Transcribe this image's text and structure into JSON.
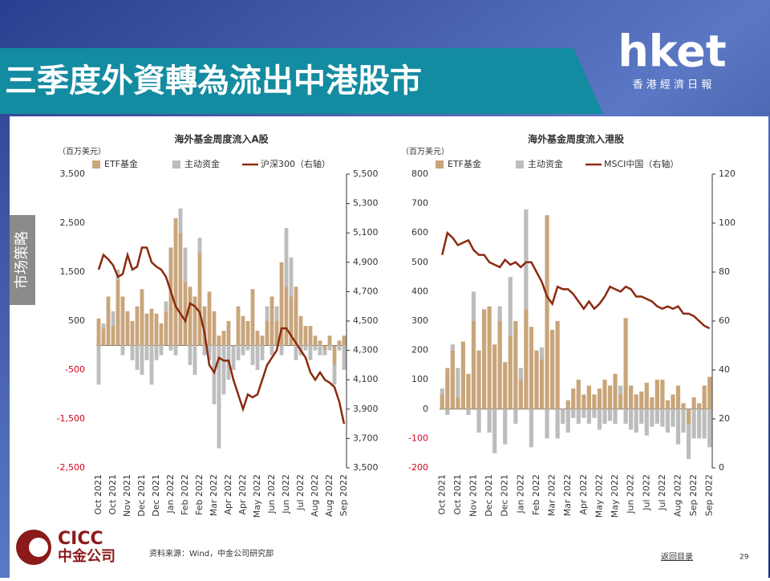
{
  "header": {
    "title": "三季度外資轉為流出中港股市",
    "logo": "hket",
    "logo_sub": "香 港 經 濟 日 報"
  },
  "sidebar": "市场策略",
  "footer": {
    "brand": "CICC",
    "brand_sub": "中金公司",
    "source": "资料来源：Wind，中金公司研究部",
    "link": "返回目录",
    "page": "29"
  },
  "chart_data": [
    {
      "type": "bar",
      "title": "海外基金周度流入A股",
      "unit": "（百万美元）",
      "categories": [
        "Oct 2021",
        null,
        null,
        "Oct 2021",
        null,
        null,
        "Nov 2021",
        null,
        null,
        "Dec 2021",
        null,
        null,
        "Dec 2021",
        null,
        null,
        "Jan 2022",
        null,
        null,
        "Feb 2022",
        null,
        null,
        "Feb 2022",
        null,
        null,
        "Mar 2022",
        null,
        null,
        "Apr 2022",
        null,
        null,
        "Apr 2022",
        null,
        null,
        "May 2022",
        null,
        null,
        "Jun 2022",
        null,
        null,
        "Jun 2022",
        null,
        null,
        "Jul 2022",
        null,
        null,
        "Aug 2022",
        null,
        null,
        "Aug 2022",
        null,
        null,
        "Sep 2022"
      ],
      "series": [
        {
          "name": "ETF基金",
          "type": "bar",
          "color": "#c9a57a",
          "values": [
            550,
            350,
            1000,
            400,
            1350,
            1000,
            700,
            500,
            800,
            1150,
            650,
            750,
            650,
            450,
            700,
            2000,
            2600,
            2300,
            1300,
            1200,
            1000,
            1900,
            800,
            1100,
            700,
            200,
            300,
            500,
            0,
            800,
            600,
            500,
            1150,
            300,
            200,
            500,
            1000,
            500,
            1700,
            1200,
            1000,
            1200,
            600,
            400,
            400,
            200,
            100,
            -100,
            200,
            -400,
            100,
            200
          ]
        },
        {
          "name": "主动资金",
          "type": "bar",
          "color": "#bdbdbd",
          "values": [
            -800,
            100,
            0,
            300,
            200,
            -200,
            0,
            -300,
            -500,
            -600,
            -300,
            -800,
            -300,
            -200,
            200,
            -100,
            -200,
            500,
            700,
            -400,
            -600,
            300,
            -200,
            -300,
            -1200,
            -2100,
            -1000,
            -700,
            -500,
            -300,
            -200,
            -100,
            -400,
            -500,
            -300,
            300,
            -200,
            300,
            -200,
            1200,
            800,
            -300,
            -200,
            -100,
            -300,
            -100,
            -200,
            -100,
            -100,
            -400,
            -100,
            -500
          ]
        },
        {
          "name": "沪深300（右轴）",
          "type": "line",
          "axis": "y2",
          "color": "#8b2a0f",
          "values": [
            4850,
            4950,
            4920,
            4880,
            4800,
            4820,
            4950,
            4850,
            4870,
            5000,
            5000,
            4900,
            4870,
            4850,
            4800,
            4700,
            4600,
            4550,
            4500,
            4620,
            4600,
            4560,
            4420,
            4200,
            4150,
            4250,
            4230,
            4230,
            4100,
            4000,
            3900,
            4000,
            3980,
            4000,
            4100,
            4200,
            4250,
            4300,
            4450,
            4450,
            4400,
            4350,
            4300,
            4250,
            4150,
            4100,
            4150,
            4100,
            4080,
            4050,
            3950,
            3800
          ]
        }
      ],
      "ylim": [
        -2500,
        3500
      ],
      "yticks": [
        {
          "value": -2500,
          "label": "-2,500"
        },
        {
          "value": -1500,
          "label": "-1,500"
        },
        -500,
        500,
        {
          "value": 1500,
          "label": "1,500"
        },
        {
          "value": 2500,
          "label": "2,500"
        },
        {
          "value": 3500,
          "label": "3,500"
        }
      ],
      "y2lim": [
        3500,
        5500
      ],
      "y2ticks": [
        {
          "value": 3500,
          "label": "3,500"
        },
        {
          "value": 3700,
          "label": "3,700"
        },
        {
          "value": 3900,
          "label": "3,900"
        },
        {
          "value": 4100,
          "label": "4,100"
        },
        {
          "value": 4300,
          "label": "4,300"
        },
        {
          "value": 4500,
          "label": "4,500"
        },
        {
          "value": 4700,
          "label": "4,700"
        },
        {
          "value": 4900,
          "label": "4,900"
        },
        {
          "value": 5100,
          "label": "5,100"
        },
        {
          "value": 5300,
          "label": "5,300"
        },
        {
          "value": 5500,
          "label": "5,500"
        }
      ]
    },
    {
      "type": "bar",
      "title": "海外基金周度流入港股",
      "unit": "（百万美元）",
      "categories": [
        "Oct 2021",
        null,
        null,
        "Oct 2021",
        null,
        null,
        "Nov 2021",
        null,
        null,
        "Dec 2021",
        null,
        null,
        "Dec 2021",
        null,
        null,
        "Jan 2022",
        null,
        null,
        "Feb 2022",
        null,
        null,
        "Mar 2022",
        null,
        null,
        "Mar 2022",
        null,
        null,
        "Apr 2022",
        null,
        null,
        "May 2022",
        null,
        null,
        "May 2022",
        null,
        null,
        "Jun 2022",
        null,
        null,
        "Jul 2022",
        null,
        null,
        "Jul 2022",
        null,
        null,
        "Aug 2022",
        null,
        null,
        "Sep 2022",
        null,
        null,
        "Sep 2022"
      ],
      "series": [
        {
          "name": "ETF基金",
          "type": "bar",
          "color": "#c9a57a",
          "values": [
            50,
            140,
            200,
            40,
            230,
            120,
            300,
            200,
            340,
            350,
            220,
            300,
            160,
            250,
            300,
            100,
            340,
            280,
            200,
            170,
            660,
            270,
            300,
            0,
            30,
            70,
            100,
            50,
            80,
            50,
            70,
            100,
            80,
            120,
            50,
            310,
            80,
            50,
            60,
            90,
            40,
            100,
            100,
            30,
            50,
            80,
            20,
            -50,
            40,
            20,
            80,
            110
          ]
        },
        {
          "name": "主动资金",
          "type": "bar",
          "color": "#bdbdbd",
          "values": [
            20,
            -20,
            20,
            100,
            0,
            -20,
            100,
            -80,
            0,
            -80,
            -150,
            50,
            -120,
            200,
            -50,
            40,
            340,
            -130,
            0,
            40,
            -100,
            0,
            -100,
            -50,
            -80,
            -30,
            -50,
            -30,
            -50,
            -30,
            -70,
            -50,
            -40,
            -50,
            30,
            -50,
            -70,
            -80,
            -50,
            -90,
            -60,
            -50,
            -60,
            -80,
            -60,
            -120,
            -80,
            -120,
            -100,
            -100,
            -100,
            -130
          ]
        },
        {
          "name": "MSCI中国（右轴）",
          "type": "line",
          "axis": "y2",
          "color": "#8b2a0f",
          "values": [
            87,
            96,
            94,
            91,
            92,
            93,
            89,
            87,
            87,
            84,
            83,
            82,
            85,
            83,
            84,
            82,
            84,
            84,
            80,
            76,
            70,
            67,
            74,
            73,
            73,
            71,
            68,
            65,
            68,
            65,
            67,
            70,
            74,
            73,
            72,
            74,
            73,
            70,
            70,
            69,
            68,
            66,
            65,
            66,
            65,
            66,
            63,
            63,
            62,
            60,
            58,
            57
          ]
        }
      ],
      "ylim": [
        -200,
        800
      ],
      "yticks": [
        -200,
        -100,
        0,
        100,
        200,
        300,
        400,
        500,
        600,
        700,
        800
      ],
      "y2lim": [
        0,
        120
      ],
      "y2ticks": [
        0,
        20,
        40,
        60,
        80,
        100,
        120
      ]
    }
  ]
}
